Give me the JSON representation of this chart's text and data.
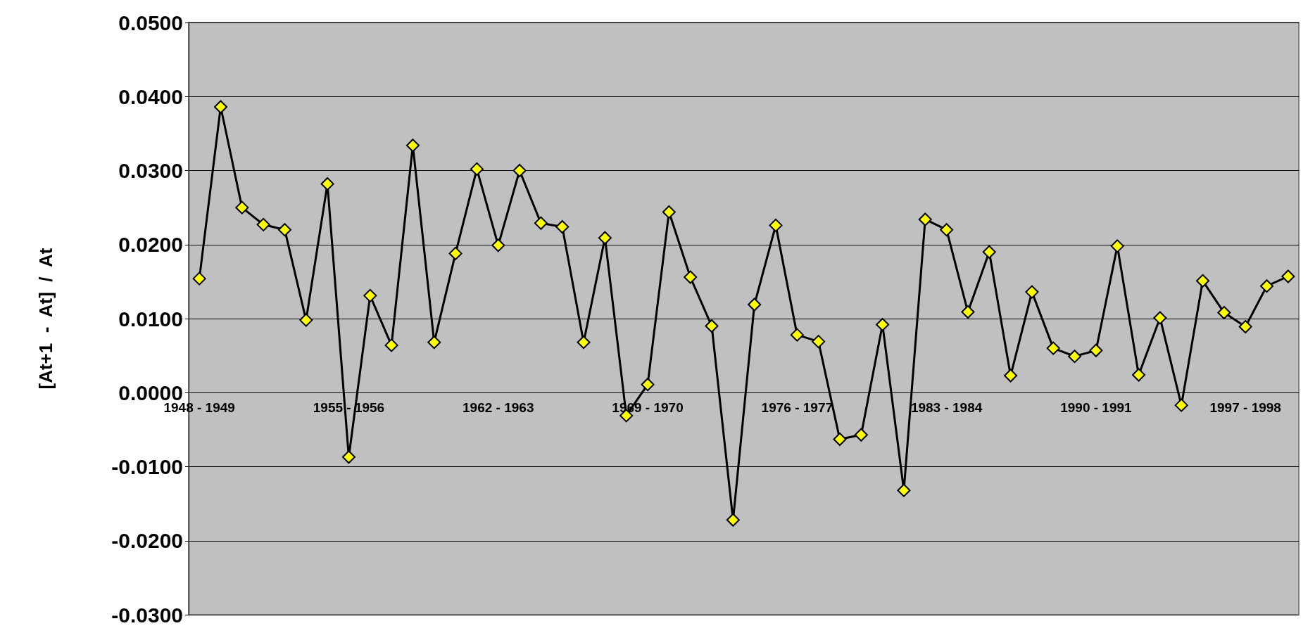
{
  "chart_data": {
    "type": "line",
    "ylabel": "[At+1  -  At]  /  At",
    "categories": [
      "1948 - 1949",
      null,
      null,
      null,
      null,
      null,
      null,
      "1955 - 1956",
      null,
      null,
      null,
      null,
      null,
      null,
      "1962 - 1963",
      null,
      null,
      null,
      null,
      null,
      null,
      "1969 - 1970",
      null,
      null,
      null,
      null,
      null,
      null,
      "1976 - 1977",
      null,
      null,
      null,
      null,
      null,
      null,
      "1983 - 1984",
      null,
      null,
      null,
      null,
      null,
      null,
      "1990 - 1991",
      null,
      null,
      null,
      null,
      null,
      null,
      "1997 - 1998",
      null,
      null
    ],
    "series": [
      {
        "color": "#ffff00",
        "values": [
          0.0154,
          0.0386,
          0.025,
          0.0227,
          0.022,
          0.0098,
          0.0282,
          -0.0087,
          0.0131,
          0.0064,
          0.0334,
          0.0068,
          0.0188,
          0.0302,
          0.0199,
          0.03,
          0.0229,
          0.0224,
          0.0068,
          0.0209,
          -0.0031,
          0.0011,
          0.0244,
          0.0156,
          0.009,
          -0.0172,
          0.0119,
          0.0226,
          0.0078,
          0.0069,
          -0.0063,
          -0.0057,
          0.0092,
          -0.0132,
          0.0234,
          0.022,
          0.0109,
          0.019,
          0.0023,
          0.0136,
          0.006,
          0.0049,
          0.0057,
          0.0198,
          0.0024,
          0.0101,
          -0.0017,
          0.0151,
          0.0108,
          0.0089,
          0.0144,
          0.0157
        ]
      }
    ],
    "ylim": [
      -0.03,
      0.05
    ],
    "yticks": [
      {
        "value": -0.03,
        "label": "-0.0300"
      },
      {
        "value": -0.02,
        "label": "-0.0200"
      },
      {
        "value": -0.01,
        "label": "-0.0100"
      },
      {
        "value": 0,
        "label": "0.0000"
      },
      {
        "value": 0.01,
        "label": "0.0100"
      },
      {
        "value": 0.02,
        "label": "0.0200"
      },
      {
        "value": 0.03,
        "label": "0.0300"
      },
      {
        "value": 0.04,
        "label": "0.0400"
      },
      {
        "value": 0.05,
        "label": "0.0500"
      }
    ],
    "grid": "y",
    "marker": "diamond",
    "line_style": "solid"
  }
}
